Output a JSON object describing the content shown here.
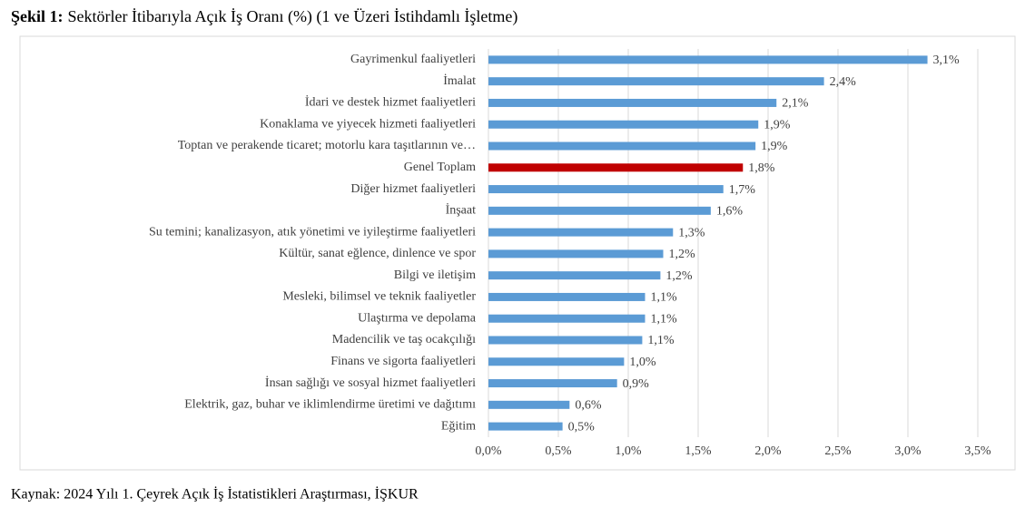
{
  "chart_data": {
    "type": "barh",
    "title_label": "Şekil 1:",
    "title": "Sektörler İtibarıyla Açık İş Oranı (%) (1 ve Üzeri İstihdamlı İşletme)",
    "source": "Kaynak: 2024 Yılı 1. Çeyrek Açık İş İstatistikleri Araştırması, İŞKUR",
    "categories": [
      "Gayrimenkul faaliyetleri",
      "İmalat",
      "İdari ve destek hizmet faaliyetleri",
      "Konaklama ve yiyecek hizmeti faaliyetleri",
      "Toptan ve perakende ticaret; motorlu kara taşıtlarının ve…",
      "Genel Toplam",
      "Diğer hizmet faaliyetleri",
      "İnşaat",
      "Su temini; kanalizasyon, atık yönetimi ve iyileştirme faaliyetleri",
      "Kültür, sanat eğlence, dinlence ve spor",
      "Bilgi ve iletişim",
      "Mesleki, bilimsel ve teknik faaliyetler",
      "Ulaştırma ve depolama",
      "Madencilik ve taş ocakçılığı",
      "Finans ve sigorta faaliyetleri",
      "İnsan sağlığı ve sosyal hizmet faaliyetleri",
      "Elektrik, gaz, buhar ve iklimlendirme üretimi ve dağıtımı",
      "Eğitim"
    ],
    "values": [
      3.14,
      2.4,
      2.06,
      1.93,
      1.91,
      1.82,
      1.68,
      1.59,
      1.32,
      1.25,
      1.23,
      1.12,
      1.12,
      1.1,
      0.97,
      0.92,
      0.58,
      0.53
    ],
    "value_labels": [
      "3,1%",
      "2,4%",
      "2,1%",
      "1,9%",
      "1,9%",
      "1,8%",
      "1,7%",
      "1,6%",
      "1,3%",
      "1,2%",
      "1,2%",
      "1,1%",
      "1,1%",
      "1,1%",
      "1,0%",
      "0,9%",
      "0,6%",
      "0,5%"
    ],
    "colors": [
      "#5b9bd5",
      "#5b9bd5",
      "#5b9bd5",
      "#5b9bd5",
      "#5b9bd5",
      "#c00000",
      "#5b9bd5",
      "#5b9bd5",
      "#5b9bd5",
      "#5b9bd5",
      "#5b9bd5",
      "#5b9bd5",
      "#5b9bd5",
      "#5b9bd5",
      "#5b9bd5",
      "#5b9bd5",
      "#5b9bd5",
      "#5b9bd5"
    ],
    "xlim": [
      0,
      3.5
    ],
    "xticks": [
      {
        "value": 0,
        "label": "0,0%"
      },
      {
        "value": 0.5,
        "label": "0,5%"
      },
      {
        "value": 1,
        "label": "1,0%"
      },
      {
        "value": 1.5,
        "label": "1,5%"
      },
      {
        "value": 2,
        "label": "2,0%"
      },
      {
        "value": 2.5,
        "label": "2,5%"
      },
      {
        "value": 3,
        "label": "3,0%"
      },
      {
        "value": 3.5,
        "label": "3,5%"
      }
    ],
    "grid": true
  }
}
